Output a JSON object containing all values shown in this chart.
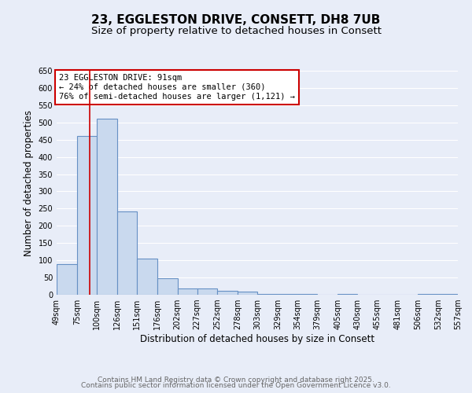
{
  "title_line1": "23, EGGLESTON DRIVE, CONSETT, DH8 7UB",
  "title_line2": "Size of property relative to detached houses in Consett",
  "xlabel": "Distribution of detached houses by size in Consett",
  "ylabel": "Number of detached properties",
  "bar_left_edges": [
    49,
    75,
    100,
    126,
    151,
    176,
    202,
    227,
    252,
    278,
    303,
    329,
    354,
    379,
    405,
    430,
    455,
    481,
    506,
    532
  ],
  "bar_widths": [
    26,
    25,
    26,
    25,
    25,
    26,
    25,
    25,
    26,
    25,
    26,
    25,
    25,
    26,
    25,
    25,
    26,
    25,
    26,
    25
  ],
  "bar_heights": [
    90,
    460,
    510,
    242,
    105,
    47,
    19,
    18,
    12,
    8,
    3,
    3,
    3,
    0,
    3,
    0,
    0,
    0,
    3,
    3
  ],
  "bar_facecolor": "#c9d9ee",
  "bar_edgecolor": "#6690c4",
  "bar_linewidth": 0.8,
  "vline_x": 91,
  "vline_color": "#cc0000",
  "vline_linewidth": 1.2,
  "annotation_text": "23 EGGLESTON DRIVE: 91sqm\n← 24% of detached houses are smaller (360)\n76% of semi-detached houses are larger (1,121) →",
  "annotation_box_facecolor": "white",
  "annotation_box_edgecolor": "#cc0000",
  "xlim_left": 49,
  "xlim_right": 557,
  "ylim_bottom": 0,
  "ylim_top": 650,
  "yticks": [
    0,
    50,
    100,
    150,
    200,
    250,
    300,
    350,
    400,
    450,
    500,
    550,
    600,
    650
  ],
  "xtick_labels": [
    "49sqm",
    "75sqm",
    "100sqm",
    "126sqm",
    "151sqm",
    "176sqm",
    "202sqm",
    "227sqm",
    "252sqm",
    "278sqm",
    "303sqm",
    "329sqm",
    "354sqm",
    "379sqm",
    "405sqm",
    "430sqm",
    "455sqm",
    "481sqm",
    "506sqm",
    "532sqm",
    "557sqm"
  ],
  "xtick_positions": [
    49,
    75,
    100,
    126,
    151,
    176,
    202,
    227,
    252,
    278,
    303,
    329,
    354,
    379,
    405,
    430,
    455,
    481,
    506,
    532,
    557
  ],
  "background_color": "#e8edf8",
  "axes_background_color": "#e8edf8",
  "grid_color": "white",
  "footer_line1": "Contains HM Land Registry data © Crown copyright and database right 2025.",
  "footer_line2": "Contains public sector information licensed under the Open Government Licence v3.0.",
  "title_fontsize": 11,
  "subtitle_fontsize": 9.5,
  "axis_label_fontsize": 8.5,
  "tick_fontsize": 7,
  "annotation_fontsize": 7.5,
  "footer_fontsize": 6.5
}
